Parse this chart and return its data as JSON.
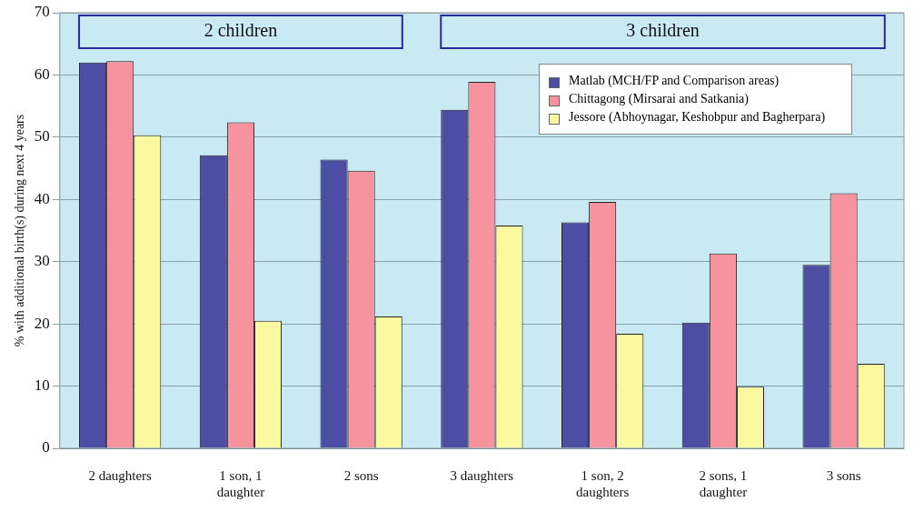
{
  "chart_data": {
    "type": "bar",
    "ylabel": "% with additional birth(s) during next 4 years",
    "categories": [
      "2 daughters",
      "1 son, 1 daughter",
      "2 sons",
      "3 daughters",
      "1 son, 2 daughters",
      "2 sons, 1 daughter",
      "3 sons"
    ],
    "series": [
      {
        "name": "Matlab (MCH/FP and Comparison areas)",
        "color": "#4b4ea3",
        "values": [
          62.0,
          47.1,
          46.4,
          54.4,
          36.3,
          20.2,
          29.5
        ]
      },
      {
        "name": "Chittagong (Mirsarai and Satkania)",
        "color": "#f7929f",
        "values": [
          62.2,
          52.4,
          44.6,
          58.9,
          39.6,
          31.3,
          41.0
        ]
      },
      {
        "name": "Jessore (Abhoynagar, Keshobpur and Bagherpara)",
        "color": "#fbf9a0",
        "values": [
          50.3,
          20.5,
          21.2,
          35.8,
          18.4,
          9.9,
          13.6
        ]
      }
    ],
    "ylim": [
      0,
      70
    ],
    "yticks": [
      0,
      10,
      20,
      30,
      40,
      50,
      60,
      70
    ],
    "grid": "y",
    "legend": "top right",
    "annotations": [
      "2 children",
      "3 children"
    ]
  }
}
